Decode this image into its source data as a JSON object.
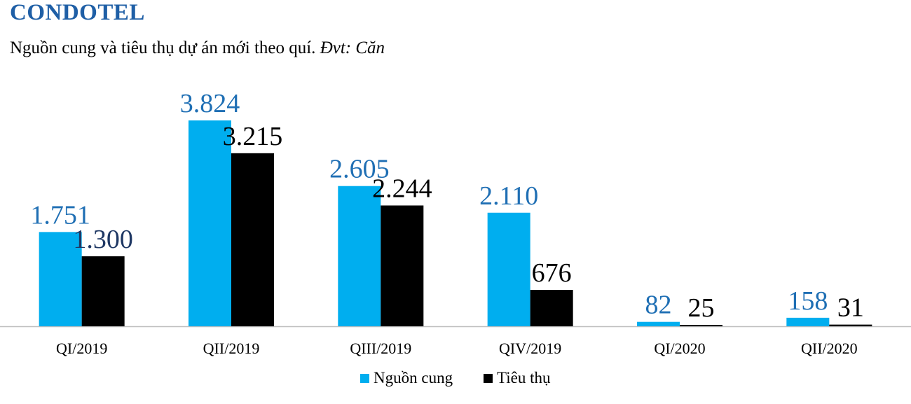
{
  "header": {
    "title": "CONDOTEL",
    "subtitle_main": "Nguồn cung và tiêu thụ dự án mới theo quí.",
    "subtitle_unit": "Đvt: Căn"
  },
  "chart_data": {
    "type": "bar",
    "categories": [
      "QI/2019",
      "QII/2019",
      "QIII/2019",
      "QIV/2019",
      "QI/2020",
      "QII/2020"
    ],
    "series": [
      {
        "name": "Nguồn cung",
        "color": "#00aeef",
        "label_color": "#1f6fb4",
        "values": [
          1751,
          3824,
          2605,
          2110,
          82,
          158
        ],
        "labels": [
          "1.751",
          "3.824",
          "2.605",
          "2.110",
          "82",
          "158"
        ]
      },
      {
        "name": "Tiêu thụ",
        "color": "#000000",
        "label_color": "#000000",
        "values": [
          1300,
          3215,
          2244,
          676,
          25,
          31
        ],
        "labels": [
          "1.300",
          "3.215",
          "2.244",
          "676",
          "25",
          "31"
        ]
      }
    ],
    "ylim": [
      0,
      3824
    ],
    "grid": false,
    "legend": "bottom-center",
    "special_label_color": {
      "series": 1,
      "index": 0,
      "color": "#1f3864"
    }
  }
}
